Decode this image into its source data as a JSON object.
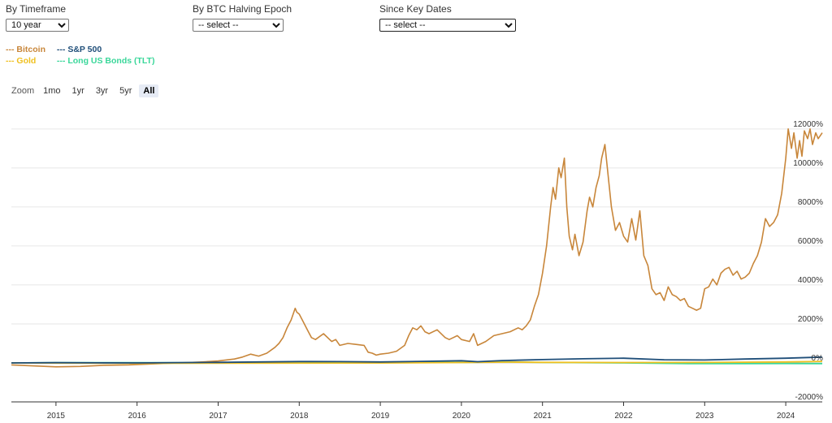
{
  "controls": {
    "timeframe": {
      "label": "By Timeframe",
      "selected": "10 year"
    },
    "epoch": {
      "label": "By BTC Halving Epoch",
      "selected": "-- select --"
    },
    "keydates": {
      "label": "Since Key Dates",
      "selected": "-- select --"
    }
  },
  "legend": [
    {
      "label": "--- Bitcoin",
      "color": "#c8863a"
    },
    {
      "label": "--- S&P 500",
      "color": "#1f4e79"
    },
    {
      "label": "--- Gold",
      "color": "#f0c020"
    },
    {
      "label": "--- Long US Bonds (TLT)",
      "color": "#3ad79a"
    }
  ],
  "zoom": {
    "label": "Zoom",
    "buttons": [
      "1mo",
      "1yr",
      "3yr",
      "5yr",
      "All"
    ],
    "active": "All"
  },
  "chart_data": {
    "type": "line",
    "x_ticks": [
      "2015",
      "2016",
      "2017",
      "2018",
      "2019",
      "2020",
      "2021",
      "2022",
      "2023",
      "2024"
    ],
    "y_ticks": [
      "12000%",
      "10000%",
      "8000%",
      "6000%",
      "4000%",
      "2000%",
      "0%",
      "-2000%"
    ],
    "xlim": [
      2014.45,
      2024.45
    ],
    "ylim": [
      -2000,
      13200
    ],
    "grid": true,
    "series": [
      {
        "name": "Bitcoin",
        "color": "#c8863a",
        "x": [
          2014.45,
          2014.7,
          2015.0,
          2015.3,
          2015.6,
          2015.9,
          2016.2,
          2016.5,
          2016.8,
          2017.0,
          2017.2,
          2017.3,
          2017.4,
          2017.5,
          2017.6,
          2017.7,
          2017.75,
          2017.8,
          2017.85,
          2017.9,
          2017.95,
          2017.97,
          2018.0,
          2018.05,
          2018.1,
          2018.15,
          2018.2,
          2018.3,
          2018.4,
          2018.45,
          2018.5,
          2018.6,
          2018.7,
          2018.8,
          2018.85,
          2018.9,
          2018.95,
          2019.0,
          2019.1,
          2019.2,
          2019.3,
          2019.35,
          2019.4,
          2019.45,
          2019.5,
          2019.55,
          2019.6,
          2019.7,
          2019.8,
          2019.85,
          2019.9,
          2019.95,
          2020.0,
          2020.1,
          2020.15,
          2020.2,
          2020.3,
          2020.4,
          2020.5,
          2020.6,
          2020.7,
          2020.75,
          2020.8,
          2020.85,
          2020.9,
          2020.95,
          2021.0,
          2021.05,
          2021.1,
          2021.13,
          2021.16,
          2021.2,
          2021.23,
          2021.27,
          2021.3,
          2021.33,
          2021.37,
          2021.4,
          2021.45,
          2021.5,
          2021.55,
          2021.58,
          2021.62,
          2021.66,
          2021.7,
          2021.73,
          2021.77,
          2021.8,
          2021.85,
          2021.9,
          2021.95,
          2022.0,
          2022.05,
          2022.1,
          2022.15,
          2022.2,
          2022.25,
          2022.3,
          2022.35,
          2022.4,
          2022.45,
          2022.5,
          2022.55,
          2022.6,
          2022.65,
          2022.7,
          2022.75,
          2022.8,
          2022.85,
          2022.9,
          2022.95,
          2023.0,
          2023.05,
          2023.1,
          2023.15,
          2023.2,
          2023.25,
          2023.3,
          2023.35,
          2023.4,
          2023.45,
          2023.5,
          2023.55,
          2023.6,
          2023.65,
          2023.7,
          2023.75,
          2023.8,
          2023.85,
          2023.9,
          2023.95,
          2024.0,
          2024.03,
          2024.07,
          2024.1,
          2024.14,
          2024.17,
          2024.2,
          2024.23,
          2024.27,
          2024.3,
          2024.33,
          2024.37,
          2024.4,
          2024.45
        ],
        "y": [
          -100,
          -150,
          -200,
          -180,
          -120,
          -100,
          -50,
          0,
          50,
          100,
          200,
          300,
          450,
          350,
          500,
          800,
          1000,
          1300,
          1800,
          2200,
          2800,
          2600,
          2500,
          2100,
          1700,
          1300,
          1200,
          1500,
          1100,
          1200,
          900,
          1000,
          950,
          900,
          550,
          500,
          400,
          450,
          500,
          600,
          900,
          1400,
          1800,
          1700,
          1900,
          1600,
          1500,
          1700,
          1300,
          1200,
          1300,
          1400,
          1200,
          1100,
          1500,
          900,
          1100,
          1400,
          1500,
          1600,
          1800,
          1700,
          1900,
          2200,
          2900,
          3500,
          4600,
          6000,
          8000,
          9000,
          8400,
          10000,
          9500,
          10500,
          8000,
          6500,
          5800,
          6600,
          5500,
          6200,
          7800,
          8500,
          8000,
          9000,
          9600,
          10500,
          11200,
          10000,
          8000,
          6800,
          7200,
          6500,
          6200,
          7400,
          6300,
          7800,
          5500,
          5000,
          3800,
          3500,
          3600,
          3200,
          3900,
          3500,
          3400,
          3200,
          3300,
          2900,
          2800,
          2700,
          2800,
          3800,
          3900,
          4300,
          4000,
          4600,
          4800,
          4900,
          4500,
          4700,
          4300,
          4400,
          4600,
          5100,
          5500,
          6200,
          7400,
          7000,
          7200,
          7600,
          8700,
          10500,
          12000,
          11000,
          11800,
          10500,
          11400,
          10600,
          11900,
          11500,
          12000,
          11200,
          11800,
          11500,
          11800
        ]
      },
      {
        "name": "S&P 500",
        "color": "#1f4e79",
        "x": [
          2014.45,
          2015.0,
          2015.5,
          2016.0,
          2016.5,
          2017.0,
          2017.5,
          2018.0,
          2018.5,
          2019.0,
          2019.5,
          2020.0,
          2020.2,
          2020.5,
          2021.0,
          2021.5,
          2022.0,
          2022.5,
          2023.0,
          2023.5,
          2024.0,
          2024.45
        ],
        "y": [
          0,
          10,
          5,
          0,
          15,
          30,
          50,
          70,
          65,
          50,
          80,
          110,
          60,
          120,
          170,
          210,
          240,
          160,
          150,
          200,
          240,
          300
        ]
      },
      {
        "name": "Gold",
        "color": "#f0c020",
        "x": [
          2014.45,
          2015.0,
          2016.0,
          2017.0,
          2018.0,
          2019.0,
          2020.0,
          2020.6,
          2021.0,
          2022.0,
          2023.0,
          2024.0,
          2024.45
        ],
        "y": [
          0,
          -10,
          -20,
          -15,
          -10,
          -5,
          20,
          40,
          30,
          20,
          25,
          50,
          80
        ]
      },
      {
        "name": "Long US Bonds (TLT)",
        "color": "#3ad79a",
        "x": [
          2014.45,
          2015.0,
          2016.0,
          2017.0,
          2018.0,
          2019.0,
          2020.0,
          2020.6,
          2021.0,
          2022.0,
          2022.8,
          2023.5,
          2024.0,
          2024.45
        ],
        "y": [
          0,
          10,
          15,
          8,
          0,
          10,
          30,
          45,
          25,
          0,
          -40,
          -35,
          -30,
          -35
        ]
      }
    ]
  }
}
